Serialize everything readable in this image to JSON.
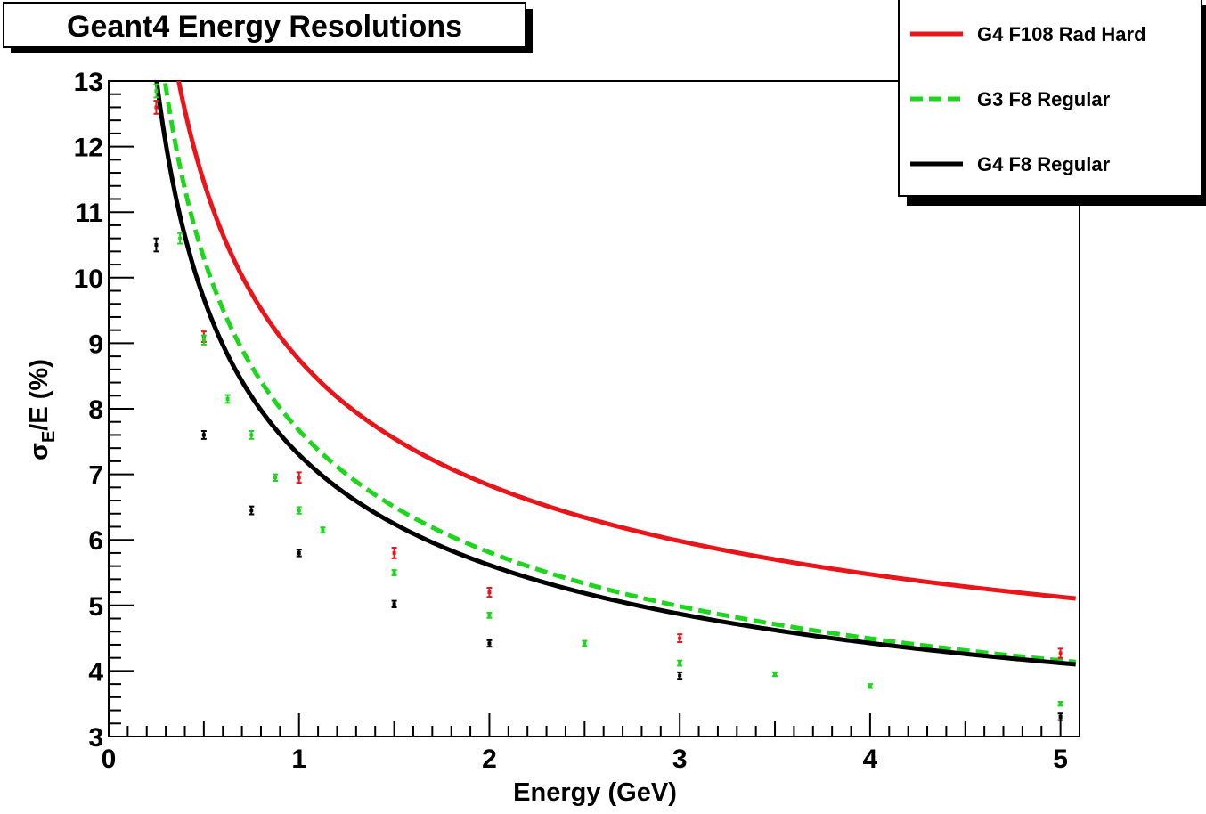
{
  "chart_data": {
    "type": "line",
    "title": "Geant4 Energy Resolutions",
    "xlabel": "Energy (GeV)",
    "ylabel_main": "σ",
    "ylabel_sub": "E",
    "ylabel_rest": "/E (%)",
    "xlim": [
      0,
      5.1
    ],
    "ylim": [
      3,
      13
    ],
    "x_ticks": [
      "0",
      "1",
      "2",
      "3",
      "4",
      "5"
    ],
    "y_ticks": [
      "3",
      "4",
      "5",
      "6",
      "7",
      "8",
      "9",
      "10",
      "11",
      "12",
      "13"
    ],
    "grid": false,
    "legend_position": "top-right",
    "series": [
      {
        "name": "G4 F108 Rad Hard",
        "color": "#e8151b",
        "dash": "solid",
        "fit": {
          "a": 6.55,
          "b": 2.2,
          "xmin": 0.19
        },
        "points": [
          {
            "x": 0.25,
            "y": 12.6,
            "err": 0.1
          },
          {
            "x": 0.5,
            "y": 9.1,
            "err": 0.08
          },
          {
            "x": 1.0,
            "y": 6.95,
            "err": 0.08
          },
          {
            "x": 1.5,
            "y": 5.8,
            "err": 0.08
          },
          {
            "x": 2.0,
            "y": 5.2,
            "err": 0.07
          },
          {
            "x": 3.0,
            "y": 4.5,
            "err": 0.06
          },
          {
            "x": 5.0,
            "y": 4.27,
            "err": 0.07
          }
        ]
      },
      {
        "name": "G3 F8 Regular",
        "color": "#1fd61f",
        "dash": "dashed",
        "fit": {
          "a": 6.35,
          "b": 1.32,
          "xmin": 0.2
        },
        "points": [
          {
            "x": 0.25,
            "y": 12.85,
            "err": 0.1
          },
          {
            "x": 0.375,
            "y": 10.6,
            "err": 0.08
          },
          {
            "x": 0.5,
            "y": 9.05,
            "err": 0.07
          },
          {
            "x": 0.625,
            "y": 8.15,
            "err": 0.06
          },
          {
            "x": 0.75,
            "y": 7.6,
            "err": 0.06
          },
          {
            "x": 0.875,
            "y": 6.95,
            "err": 0.05
          },
          {
            "x": 1.0,
            "y": 6.45,
            "err": 0.05
          },
          {
            "x": 1.125,
            "y": 6.15,
            "err": 0.04
          },
          {
            "x": 1.5,
            "y": 5.5,
            "err": 0.04
          },
          {
            "x": 2.0,
            "y": 4.85,
            "err": 0.04
          },
          {
            "x": 2.5,
            "y": 4.42,
            "err": 0.04
          },
          {
            "x": 3.0,
            "y": 4.12,
            "err": 0.04
          },
          {
            "x": 3.5,
            "y": 3.95,
            "err": 0.03
          },
          {
            "x": 4.0,
            "y": 3.77,
            "err": 0.03
          },
          {
            "x": 5.0,
            "y": 3.5,
            "err": 0.03
          }
        ]
      },
      {
        "name": "G4 F8 Regular",
        "color": "#000000",
        "dash": "solid",
        "fit": {
          "a": 5.75,
          "b": 1.55,
          "xmin": 0.14
        },
        "points": [
          {
            "x": 0.25,
            "y": 10.5,
            "err": 0.1
          },
          {
            "x": 0.5,
            "y": 7.6,
            "err": 0.06
          },
          {
            "x": 0.75,
            "y": 6.45,
            "err": 0.06
          },
          {
            "x": 1.0,
            "y": 5.8,
            "err": 0.05
          },
          {
            "x": 1.5,
            "y": 5.02,
            "err": 0.05
          },
          {
            "x": 2.0,
            "y": 4.42,
            "err": 0.05
          },
          {
            "x": 3.0,
            "y": 3.93,
            "err": 0.05
          },
          {
            "x": 5.0,
            "y": 3.3,
            "err": 0.05
          }
        ]
      }
    ]
  }
}
